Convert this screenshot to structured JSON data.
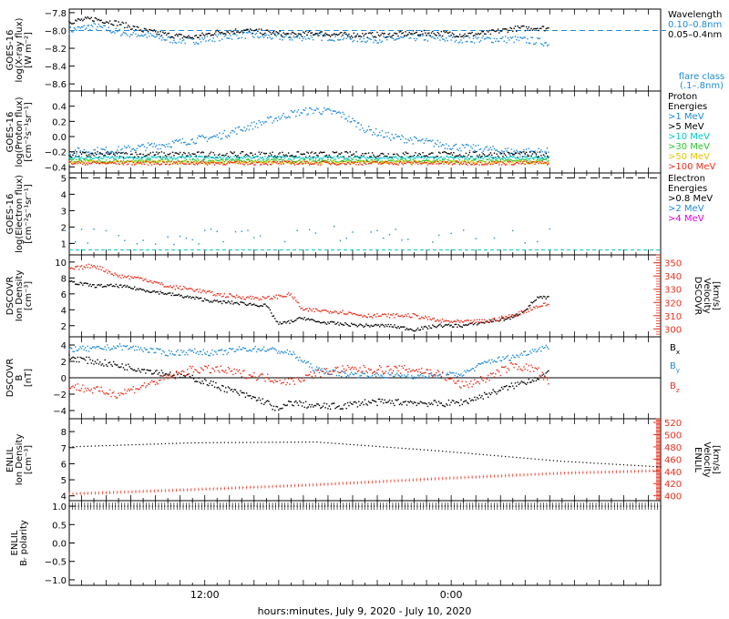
{
  "x_axis": {
    "label": "hours:minutes, July  9, 2020 - July 10, 2020",
    "range_hours": [
      0,
      48
    ],
    "labeled_ticks": [
      {
        "h": 11,
        "label": "12:00"
      },
      {
        "h": 31,
        "label": "0:00"
      }
    ]
  },
  "colors": {
    "black": "#000000",
    "blue": "#1e8ad6",
    "red": "#e8301e",
    "cyan": "#00c8c8",
    "green": "#2cc82c",
    "yellow": "#e6c800",
    "orange": "#ff8c00",
    "magenta": "#e000e0"
  },
  "chart_data": [
    {
      "id": "xray",
      "type": "scatter",
      "ylabel": [
        "GOES-16",
        "log(X-ray flux)",
        "[W m⁻²]"
      ],
      "ylim": [
        -8.68,
        -7.76
      ],
      "ticks": [
        {
          "v": -7.8,
          "label": "−7.8"
        },
        {
          "v": -8.0,
          "label": "−8.0"
        },
        {
          "v": -8.2,
          "label": "−8.2"
        },
        {
          "v": -8.4,
          "label": "−8.4"
        },
        {
          "v": -8.6,
          "label": "−8.6"
        }
      ],
      "reference_line": {
        "value": -8.0,
        "label": "flare class",
        "sublabel": "(.1–.8nm)",
        "color": "blue"
      },
      "legend_title": "Wavelength",
      "series": [
        {
          "name": "0.10–0.8nm",
          "color": "blue",
          "x": [
            0,
            2,
            4,
            6,
            8,
            10,
            12,
            14,
            16,
            18,
            20,
            22,
            24,
            26,
            28,
            30,
            32,
            34,
            36,
            38,
            39
          ],
          "y": [
            -8.0,
            -7.95,
            -8.02,
            -8.05,
            -8.1,
            -8.12,
            -8.08,
            -8.05,
            -8.07,
            -8.08,
            -8.07,
            -8.08,
            -8.1,
            -8.1,
            -8.08,
            -8.09,
            -8.1,
            -8.1,
            -8.1,
            -8.12,
            -8.15
          ],
          "spread": 0.04
        },
        {
          "name": "0.05–0.4nm",
          "color": "black",
          "x": [
            0,
            2,
            4,
            6,
            8,
            10,
            12,
            14,
            16,
            18,
            20,
            22,
            24,
            26,
            28,
            30,
            32,
            34,
            36,
            38,
            39
          ],
          "y": [
            -7.9,
            -7.87,
            -7.92,
            -8.0,
            -8.05,
            -8.08,
            -8.02,
            -8.0,
            -8.02,
            -8.05,
            -8.03,
            -8.05,
            -8.05,
            -8.05,
            -8.03,
            -8.03,
            -8.05,
            -8.03,
            -7.98,
            -7.97,
            -7.98
          ],
          "spread": 0.03
        }
      ]
    },
    {
      "id": "proton",
      "type": "scatter",
      "ylabel": [
        "GOES-16",
        "log(Proton flux)",
        "[cm⁻²s⁻¹sr⁻¹]"
      ],
      "ylim": [
        -0.48,
        0.6
      ],
      "ticks": [
        {
          "v": 0.4,
          "label": "0.4"
        },
        {
          "v": 0.2,
          "label": "0.2"
        },
        {
          "v": 0.0,
          "label": "0.0"
        },
        {
          "v": -0.2,
          "label": "−0.2"
        },
        {
          "v": -0.4,
          "label": "−0.4"
        }
      ],
      "legend_title": [
        "Proton",
        "Energies"
      ],
      "series": [
        {
          "name": ">1 MeV",
          "color": "blue",
          "x": [
            0,
            4,
            8,
            10,
            12,
            14,
            16,
            18,
            20,
            22,
            24,
            26,
            28,
            30,
            32,
            34,
            36,
            38,
            39
          ],
          "y": [
            -0.2,
            -0.18,
            -0.1,
            -0.05,
            0.0,
            0.1,
            0.2,
            0.3,
            0.35,
            0.3,
            0.1,
            0.0,
            -0.05,
            -0.1,
            -0.15,
            -0.17,
            -0.2,
            -0.2,
            -0.2
          ],
          "spread": 0.05
        },
        {
          "name": ">5 MeV",
          "color": "black",
          "x": [
            0,
            10,
            20,
            30,
            39
          ],
          "y": [
            -0.24,
            -0.24,
            -0.24,
            -0.24,
            -0.24
          ],
          "spread": 0.04
        },
        {
          "name": ">10 MeV",
          "color": "cyan",
          "x": [
            0,
            39
          ],
          "y": [
            -0.28,
            -0.28
          ],
          "spread": 0.02
        },
        {
          "name": ">30 MeV",
          "color": "green",
          "x": [
            0,
            39
          ],
          "y": [
            -0.32,
            -0.32
          ],
          "spread": 0.02
        },
        {
          "name": ">50 MeV",
          "color": "yellow",
          "x": [
            0,
            39
          ],
          "y": [
            -0.34,
            -0.34
          ],
          "spread": 0.02
        },
        {
          "name": ">100 MeV",
          "color": "red",
          "x": [
            0,
            39
          ],
          "y": [
            -0.35,
            -0.35
          ],
          "spread": 0.025
        }
      ]
    },
    {
      "id": "electron",
      "type": "scatter",
      "ylabel": [
        "GOES-16",
        "log(Electron flux)",
        "[cm⁻²s⁻¹sr⁻¹]"
      ],
      "ylim": [
        0.3,
        5.3
      ],
      "ticks": [
        {
          "v": 5,
          "label": "5"
        },
        {
          "v": 4,
          "label": "4"
        },
        {
          "v": 3,
          "label": "3"
        },
        {
          "v": 2,
          "label": "2"
        },
        {
          "v": 1,
          "label": "1"
        }
      ],
      "reference_lines": [
        {
          "value": 5.0,
          "color": "black"
        },
        {
          "value": 0.6,
          "color": "cyan"
        }
      ],
      "legend_title": [
        "Electron",
        "Energies"
      ],
      "series": [
        {
          "name": ">0.8 MeV",
          "color": "black",
          "x": [],
          "y": []
        },
        {
          "name": ">2 MeV",
          "color": "blue",
          "x": [
            0,
            8,
            16,
            24,
            32,
            39
          ],
          "y": [
            1.5,
            1.4,
            1.6,
            1.6,
            1.5,
            1.5
          ],
          "spread": 0.5
        },
        {
          "name": ">4 MeV",
          "color": "magenta",
          "x": [],
          "y": []
        }
      ]
    },
    {
      "id": "dscovr_density",
      "type": "line",
      "ylabel": [
        "DSCOVR",
        "Ion Density",
        "[cm⁻³]"
      ],
      "ylim": [
        0.6,
        10.9
      ],
      "ticks": [
        {
          "v": 10,
          "label": "10"
        },
        {
          "v": 8,
          "label": "8"
        },
        {
          "v": 6,
          "label": "6"
        },
        {
          "v": 4,
          "label": "4"
        },
        {
          "v": 2,
          "label": "2"
        }
      ],
      "right_axis": {
        "label": [
          "DSCOVR",
          "Velocity",
          "[km/s]"
        ],
        "ylim": [
          294,
          356
        ],
        "ticks": [
          {
            "v": 350,
            "label": "350"
          },
          {
            "v": 340,
            "label": "340"
          },
          {
            "v": 330,
            "label": "330"
          },
          {
            "v": 320,
            "label": "320"
          },
          {
            "v": 310,
            "label": "310"
          },
          {
            "v": 300,
            "label": "300"
          }
        ],
        "color": "red"
      },
      "series": [
        {
          "name": "Ion Density",
          "color": "black",
          "axis": "left",
          "x": [
            0,
            2,
            4,
            6,
            8,
            10,
            12,
            14,
            16,
            17,
            18,
            19,
            20,
            22,
            24,
            26,
            28,
            30,
            32,
            34,
            36,
            37,
            38,
            39
          ],
          "y": [
            7.5,
            7,
            7,
            6.5,
            6,
            5.5,
            5,
            4.8,
            4.5,
            2.2,
            2.5,
            3,
            2.5,
            2.2,
            2,
            2,
            1.5,
            2,
            2,
            2.5,
            3,
            4,
            5.5,
            5.5
          ],
          "spread": 0.2
        },
        {
          "name": "Velocity",
          "color": "red",
          "axis": "right",
          "x": [
            0,
            2,
            4,
            6,
            8,
            10,
            12,
            14,
            16,
            18,
            19,
            20,
            22,
            24,
            26,
            28,
            30,
            32,
            34,
            36,
            38,
            39
          ],
          "y": [
            345,
            348,
            340,
            338,
            332,
            330,
            326,
            324,
            323,
            326,
            314,
            314,
            313,
            310,
            310,
            310,
            306,
            305,
            306,
            310,
            317,
            319
          ],
          "spread": 1.5
        }
      ]
    },
    {
      "id": "dscovr_b",
      "type": "line",
      "ylabel": [
        "DSCOVR",
        "B",
        "[nT]"
      ],
      "ylim": [
        -5,
        5
      ],
      "ticks": [
        {
          "v": 4,
          "label": "4"
        },
        {
          "v": 2,
          "label": "2"
        },
        {
          "v": 0,
          "label": "0"
        },
        {
          "v": -2,
          "label": "−2"
        },
        {
          "v": -4,
          "label": "−4"
        }
      ],
      "zero_line": true,
      "series": [
        {
          "name": "B",
          "sub": "x",
          "color": "black",
          "x": [
            0,
            2,
            4,
            6,
            8,
            10,
            12,
            14,
            16,
            17,
            18,
            20,
            22,
            24,
            26,
            28,
            30,
            32,
            34,
            36,
            38,
            39
          ],
          "y": [
            2.5,
            2,
            1.5,
            1,
            0.5,
            0,
            -1,
            -2,
            -3,
            -4,
            -3,
            -3.5,
            -3.5,
            -3,
            -3,
            -3,
            -3.2,
            -3,
            -2,
            -1,
            0,
            0.5
          ],
          "spread": 0.4
        },
        {
          "name": "B",
          "sub": "y",
          "color": "blue",
          "x": [
            0,
            2,
            4,
            6,
            8,
            10,
            12,
            14,
            16,
            18,
            20,
            22,
            24,
            26,
            28,
            30,
            32,
            34,
            36,
            38,
            39
          ],
          "y": [
            3.5,
            3.5,
            3.8,
            3.5,
            3,
            3.2,
            3,
            3.5,
            3.5,
            3,
            1,
            0.5,
            0.3,
            0.3,
            0.2,
            0.2,
            0.5,
            2,
            2.5,
            3.5,
            3.8
          ],
          "spread": 0.35
        },
        {
          "name": "B",
          "sub": "z",
          "color": "red",
          "x": [
            0,
            2,
            4,
            6,
            8,
            10,
            12,
            14,
            16,
            18,
            20,
            22,
            24,
            26,
            28,
            30,
            32,
            34,
            36,
            38,
            39
          ],
          "y": [
            -1,
            -1.5,
            -2,
            -1,
            0,
            1,
            1,
            0.5,
            0,
            -0.5,
            0.5,
            1,
            1,
            1,
            1,
            0.5,
            -1,
            0,
            1.5,
            1,
            -1
          ],
          "spread": 0.5
        }
      ]
    },
    {
      "id": "enlil_density",
      "type": "line",
      "ylabel": [
        "ENLIL",
        "Ion Density",
        "[cm⁻³]"
      ],
      "ylim": [
        3.7,
        8.8
      ],
      "ticks": [
        {
          "v": 8,
          "label": "8"
        },
        {
          "v": 7,
          "label": "7"
        },
        {
          "v": 6,
          "label": "6"
        },
        {
          "v": 5,
          "label": "5"
        },
        {
          "v": 4,
          "label": "4"
        }
      ],
      "right_axis": {
        "label": [
          "ENLIL",
          "Velocity",
          "[km/s]"
        ],
        "ylim": [
          392,
          526
        ],
        "ticks": [
          {
            "v": 520,
            "label": "520"
          },
          {
            "v": 500,
            "label": "500"
          },
          {
            "v": 480,
            "label": "480"
          },
          {
            "v": 460,
            "label": "460"
          },
          {
            "v": 440,
            "label": "440"
          },
          {
            "v": 420,
            "label": "420"
          },
          {
            "v": 400,
            "label": "400"
          }
        ],
        "color": "red"
      },
      "series": [
        {
          "name": "Ion Density",
          "color": "black",
          "axis": "left",
          "x": [
            0,
            10,
            20,
            30,
            40,
            48
          ],
          "y": [
            7.05,
            7.3,
            7.35,
            6.8,
            6.15,
            5.8
          ]
        },
        {
          "name": "Velocity",
          "color": "red",
          "axis": "right",
          "x": [
            0,
            10,
            20,
            30,
            40,
            48
          ],
          "y": [
            403,
            410,
            418,
            428,
            437,
            441
          ]
        }
      ]
    },
    {
      "id": "enlil_polarity",
      "type": "line",
      "ylabel": [
        "ENLIL",
        "Bᵣ polarity"
      ],
      "ylim": [
        -1.15,
        1.15
      ],
      "ticks": [
        {
          "v": 1.0,
          "label": "1.0"
        },
        {
          "v": 0.5,
          "label": "0.5"
        },
        {
          "v": 0.0,
          "label": "0.0"
        },
        {
          "v": -0.5,
          "label": "−0.5"
        },
        {
          "v": -1.0,
          "label": "−1.0"
        }
      ],
      "series": [
        {
          "name": "polarity",
          "color": "black",
          "x": [
            0,
            48
          ],
          "y": [
            1.0,
            1.0
          ]
        }
      ]
    }
  ]
}
